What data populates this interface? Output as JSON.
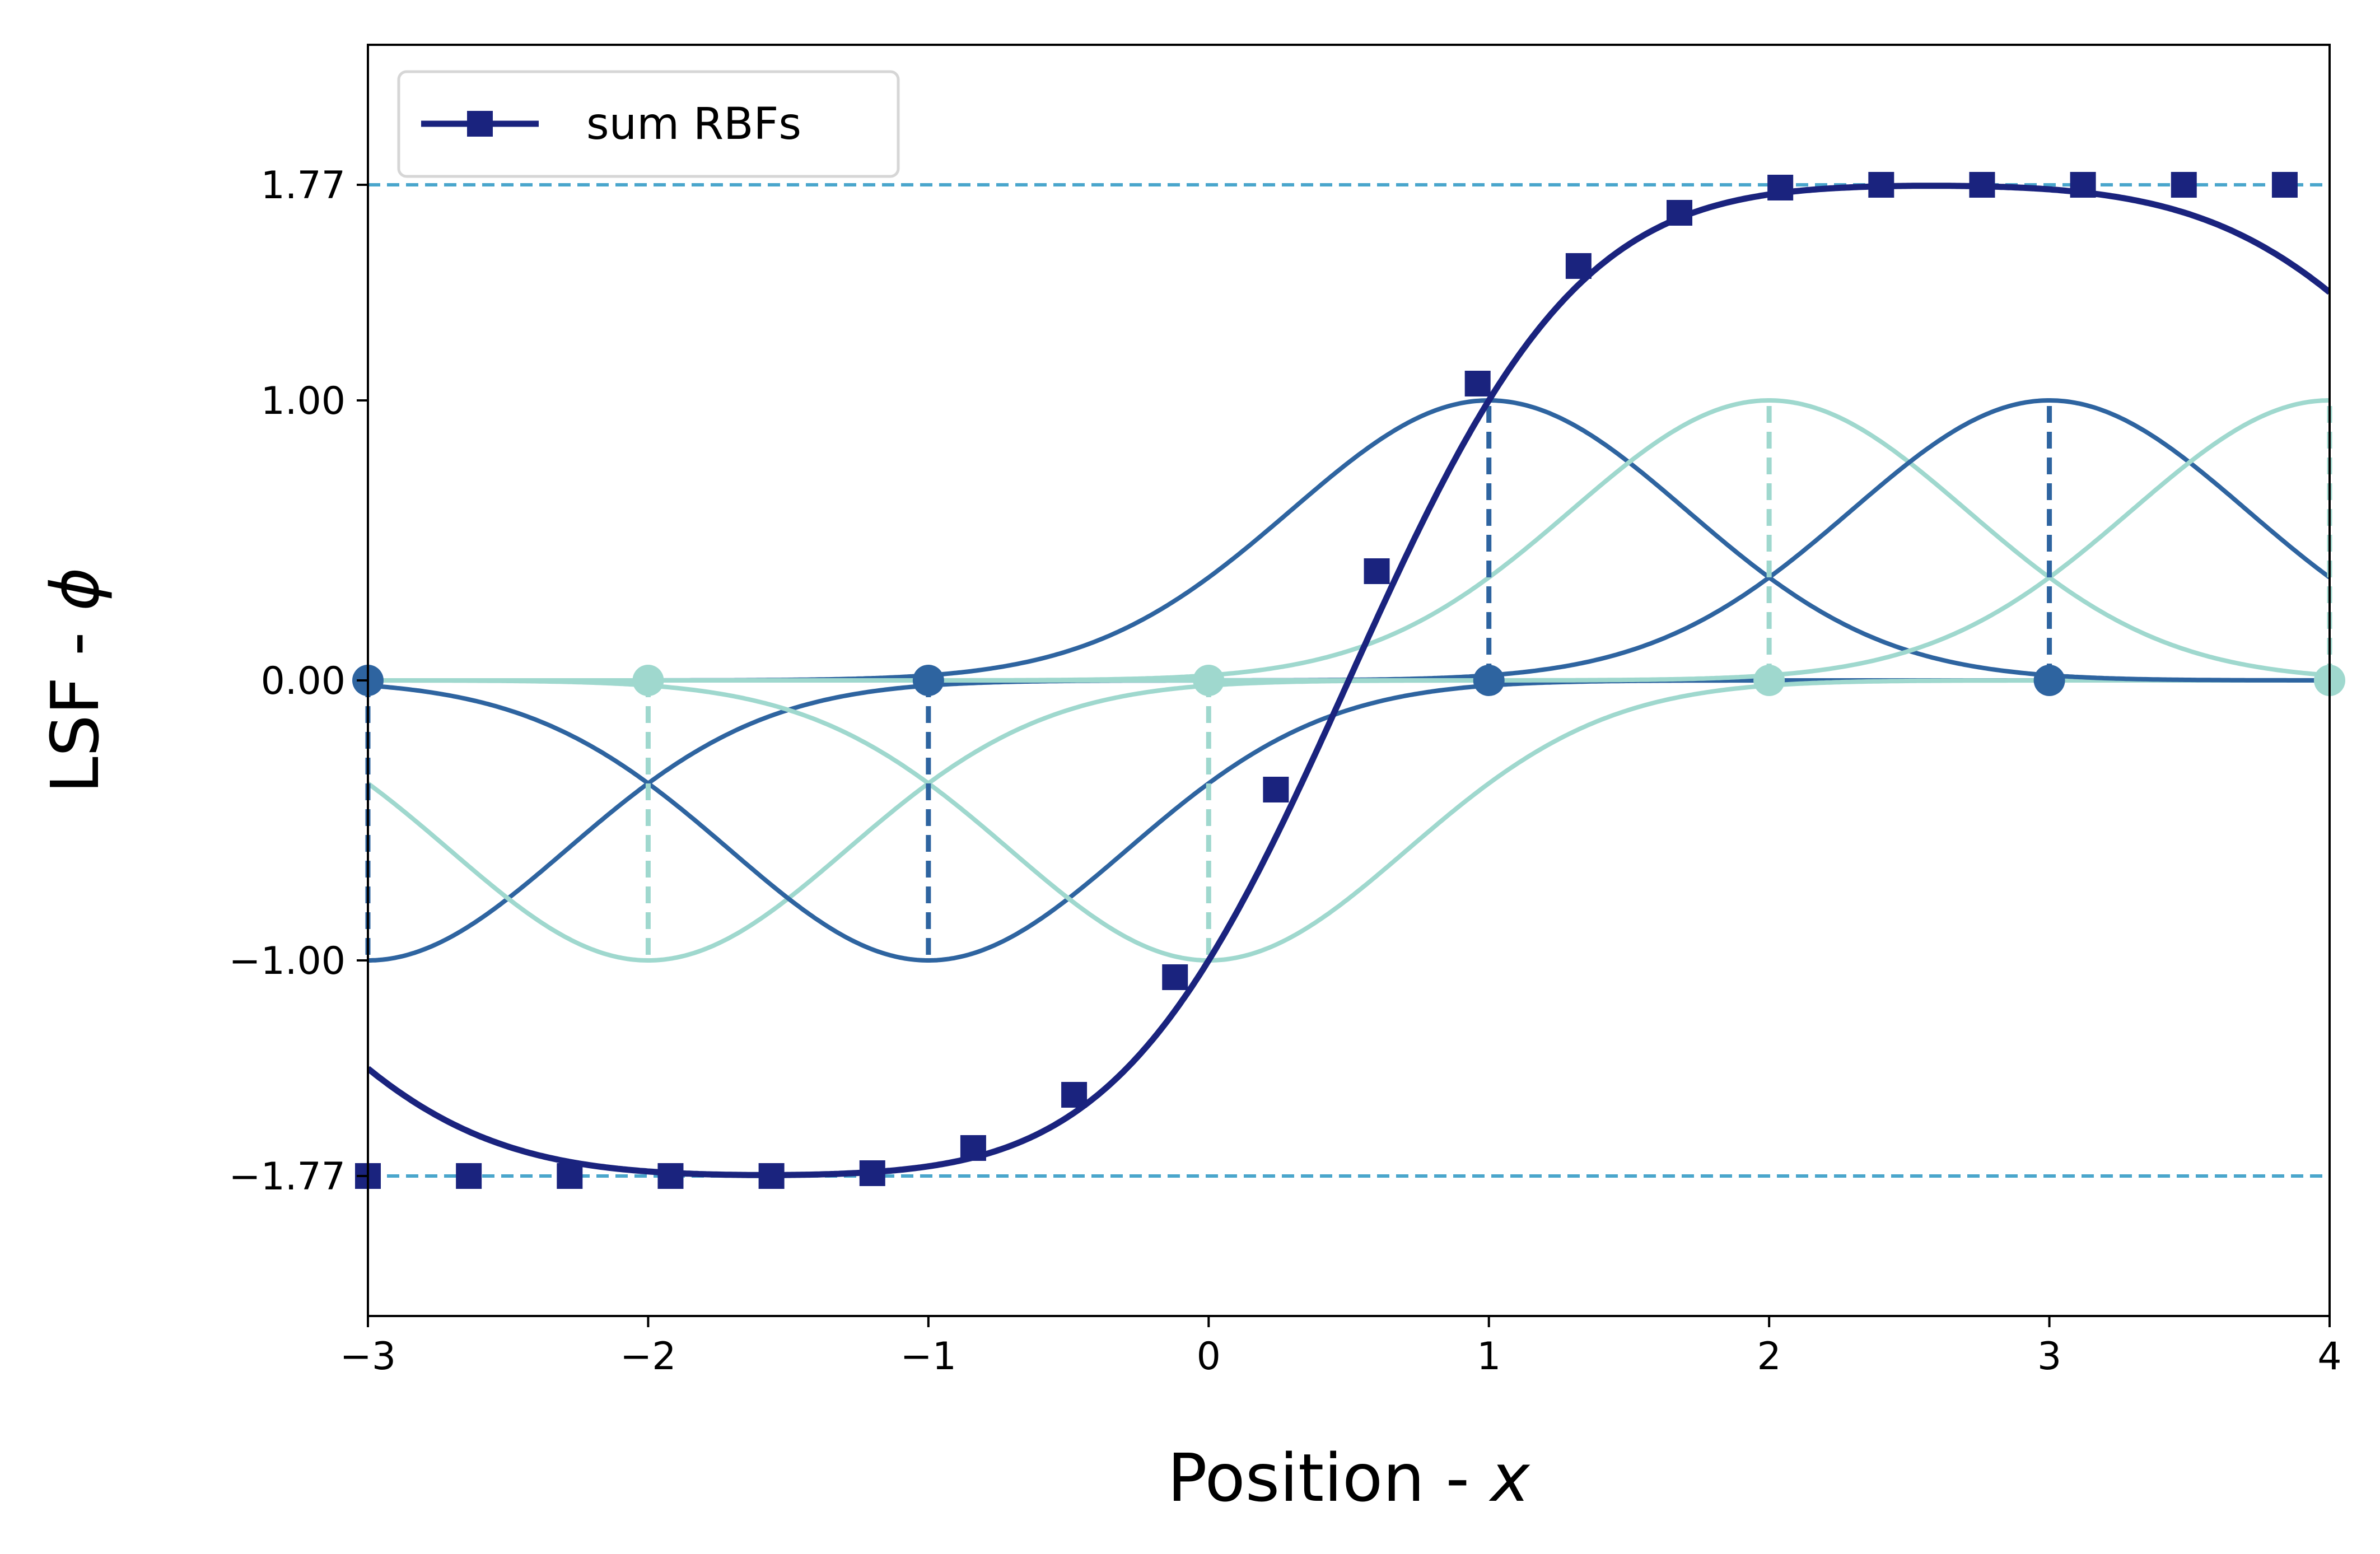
{
  "chart_data": {
    "type": "line",
    "xlabel_prefix": "Position - ",
    "xlabel_symbol": "x",
    "ylabel_prefix": "LSF - ",
    "ylabel_symbol": "ϕ",
    "xlim": [
      -3,
      4
    ],
    "ylim": [
      -2.27,
      2.27
    ],
    "x_ticks": [
      -3,
      -2,
      -1,
      0,
      1,
      2,
      3,
      4
    ],
    "x_tick_labels": [
      "−3",
      "−2",
      "−1",
      "0",
      "1",
      "2",
      "3",
      "4"
    ],
    "y_ticks": [
      -1.77,
      -1.0,
      0.0,
      1.0,
      1.77
    ],
    "y_tick_labels": [
      "−1.77",
      "−1.00",
      "0.00",
      "1.00",
      "1.77"
    ],
    "grid": false,
    "legend_placement": "top-left",
    "reference_lines": [
      1.77,
      -1.77
    ],
    "rbf_width": 0.707,
    "colors": {
      "sum": "#1a237e",
      "dark_rbf": "#2e64a0",
      "light_rbf": "#9fd8ce",
      "reference": "#4aa6cc"
    },
    "rbf_centers": [
      {
        "center": -3,
        "weight": -1,
        "color": "dark"
      },
      {
        "center": -2,
        "weight": -1,
        "color": "light"
      },
      {
        "center": -1,
        "weight": -1,
        "color": "dark"
      },
      {
        "center": 0,
        "weight": -1,
        "color": "light"
      },
      {
        "center": 1,
        "weight": 1,
        "color": "dark"
      },
      {
        "center": 2,
        "weight": 1,
        "color": "light"
      },
      {
        "center": 3,
        "weight": 1,
        "color": "dark"
      },
      {
        "center": 4,
        "weight": 1,
        "color": "light"
      }
    ],
    "series": [
      {
        "name": "sum RBFs",
        "x": [
          -3.0,
          -2.64,
          -2.28,
          -1.92,
          -1.56,
          -1.2,
          -0.84,
          -0.48,
          -0.12,
          0.24,
          0.6,
          0.96,
          1.32,
          1.68,
          2.04,
          2.4,
          2.76,
          3.12,
          3.48,
          3.84
        ],
        "y": [
          -1.77,
          -1.77,
          -1.77,
          -1.77,
          -1.77,
          -1.76,
          -1.67,
          -1.48,
          -1.06,
          -0.39,
          0.39,
          1.06,
          1.48,
          1.67,
          1.76,
          1.77,
          1.77,
          1.77,
          1.77,
          1.77
        ]
      }
    ]
  }
}
